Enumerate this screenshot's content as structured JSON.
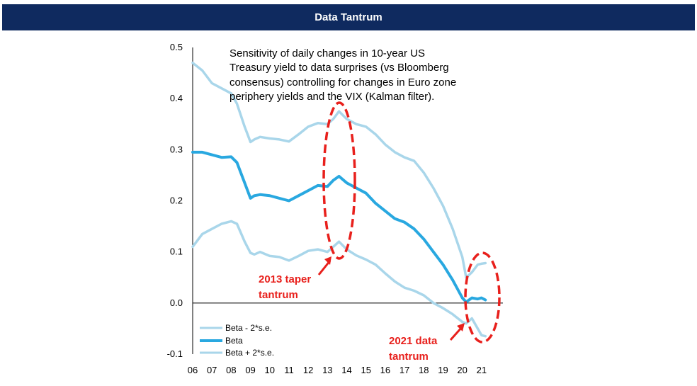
{
  "banner": {
    "title": "Data Tantrum"
  },
  "chart_data": {
    "type": "line",
    "title": "",
    "xlabel": "",
    "ylabel": "",
    "ylim": [
      -0.1,
      0.5
    ],
    "yticks": [
      "0.5",
      "0.4",
      "0.3",
      "0.2",
      "0.1",
      "0.0",
      "-0.1"
    ],
    "yticks_values": [
      0.5,
      0.4,
      0.3,
      0.2,
      0.1,
      0.0,
      -0.1
    ],
    "xticks": [
      "06",
      "07",
      "08",
      "09",
      "10",
      "11",
      "12",
      "13",
      "14",
      "15",
      "16",
      "17",
      "18",
      "19",
      "20",
      "21"
    ],
    "xticks_values": [
      2006,
      2007,
      2008,
      2009,
      2010,
      2011,
      2012,
      2013,
      2014,
      2015,
      2016,
      2017,
      2018,
      2019,
      2020,
      2021
    ],
    "xlim": [
      2006,
      2021.3
    ],
    "grid": false,
    "annotation": [
      "Sensitivity of daily changes in 10-year US",
      "Treasury yield to data surprises (vs Bloomberg",
      "consensus) controlling for changes in Euro zone",
      "periphery yields and the VIX (Kalman filter)."
    ],
    "callouts": {
      "taper": [
        "2013 taper",
        "tantrum"
      ],
      "data": [
        "2021 data",
        "tantrum"
      ]
    },
    "series": [
      {
        "name": "Beta - 2*s.e.",
        "color": "#a9d6ea",
        "x": [
          2006.0,
          2006.5,
          2007.0,
          2007.5,
          2008.0,
          2008.3,
          2008.7,
          2009.0,
          2009.2,
          2009.5,
          2010.0,
          2010.5,
          2011.0,
          2011.5,
          2012.0,
          2012.5,
          2013.0,
          2013.3,
          2013.6,
          2014.0,
          2014.5,
          2015.0,
          2015.5,
          2016.0,
          2016.5,
          2017.0,
          2017.5,
          2018.0,
          2018.5,
          2019.0,
          2019.5,
          2020.0,
          2020.2,
          2020.5,
          2020.8,
          2021.0,
          2021.2
        ],
        "values": [
          0.11,
          0.135,
          0.145,
          0.155,
          0.16,
          0.155,
          0.12,
          0.098,
          0.095,
          0.1,
          0.092,
          0.09,
          0.083,
          0.092,
          0.102,
          0.105,
          0.1,
          0.11,
          0.12,
          0.105,
          0.093,
          0.085,
          0.075,
          0.058,
          0.042,
          0.03,
          0.024,
          0.015,
          0.0,
          -0.01,
          -0.022,
          -0.037,
          -0.04,
          -0.03,
          -0.05,
          -0.063,
          -0.065
        ]
      },
      {
        "name": "Beta",
        "color": "#29a8e0",
        "x": [
          2006.0,
          2006.5,
          2007.0,
          2007.5,
          2008.0,
          2008.3,
          2008.7,
          2009.0,
          2009.2,
          2009.5,
          2010.0,
          2010.5,
          2011.0,
          2011.5,
          2012.0,
          2012.5,
          2013.0,
          2013.3,
          2013.6,
          2014.0,
          2014.5,
          2015.0,
          2015.5,
          2016.0,
          2016.5,
          2017.0,
          2017.5,
          2018.0,
          2018.5,
          2019.0,
          2019.5,
          2020.0,
          2020.2,
          2020.5,
          2020.8,
          2021.0,
          2021.2
        ],
        "values": [
          0.295,
          0.295,
          0.29,
          0.285,
          0.286,
          0.275,
          0.235,
          0.205,
          0.21,
          0.212,
          0.21,
          0.205,
          0.2,
          0.21,
          0.22,
          0.23,
          0.228,
          0.24,
          0.248,
          0.235,
          0.225,
          0.215,
          0.195,
          0.18,
          0.165,
          0.158,
          0.145,
          0.125,
          0.1,
          0.075,
          0.045,
          0.01,
          0.002,
          0.01,
          0.008,
          0.01,
          0.006
        ]
      },
      {
        "name": "Beta + 2*s.e.",
        "color": "#a9d6ea",
        "x": [
          2006.0,
          2006.5,
          2007.0,
          2007.5,
          2008.0,
          2008.3,
          2008.7,
          2009.0,
          2009.2,
          2009.5,
          2010.0,
          2010.5,
          2011.0,
          2011.5,
          2012.0,
          2012.5,
          2013.0,
          2013.3,
          2013.6,
          2014.0,
          2014.5,
          2015.0,
          2015.5,
          2016.0,
          2016.5,
          2017.0,
          2017.5,
          2018.0,
          2018.5,
          2019.0,
          2019.5,
          2020.0,
          2020.2,
          2020.5,
          2020.8,
          2021.0,
          2021.2
        ],
        "values": [
          0.47,
          0.455,
          0.43,
          0.42,
          0.41,
          0.39,
          0.345,
          0.315,
          0.32,
          0.325,
          0.322,
          0.32,
          0.316,
          0.33,
          0.345,
          0.352,
          0.35,
          0.36,
          0.375,
          0.36,
          0.35,
          0.345,
          0.33,
          0.31,
          0.295,
          0.285,
          0.278,
          0.255,
          0.225,
          0.19,
          0.145,
          0.09,
          0.05,
          0.06,
          0.075,
          0.077,
          0.078
        ]
      }
    ]
  }
}
